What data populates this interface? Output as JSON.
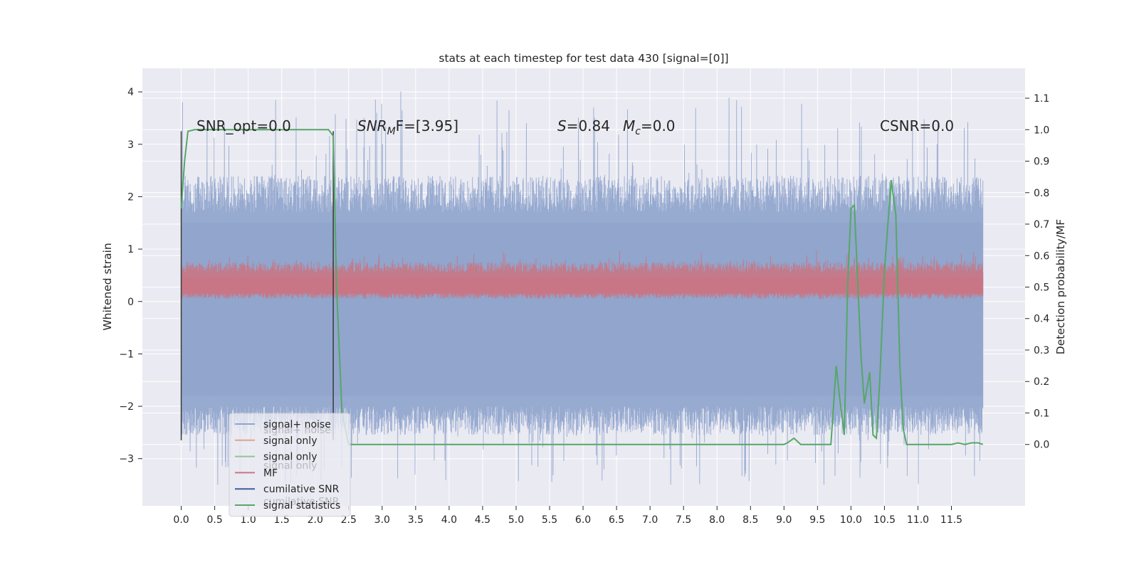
{
  "chart_data": {
    "type": "line",
    "title": "stats at each timestep for test data 430 [signal=[0]]",
    "ylabel_left": "Whitened strain",
    "ylabel_right": "Detection probability/MF",
    "x_ticks": [
      "0.0",
      "0.5",
      "1.0",
      "1.5",
      "2.0",
      "2.5",
      "3.0",
      "3.5",
      "4.0",
      "4.5",
      "5.0",
      "5.5",
      "6.0",
      "6.5",
      "7.0",
      "7.5",
      "8.0",
      "8.5",
      "9.0",
      "9.5",
      "10.0",
      "10.5",
      "11.0",
      "11.5"
    ],
    "y_left_ticks": [
      -3,
      -2,
      -1,
      0,
      1,
      2,
      3,
      4
    ],
    "y_left_tick_labels": [
      "−3",
      "−2",
      "−1",
      "0",
      "1",
      "2",
      "3",
      "4"
    ],
    "y_right_ticks": [
      "0.0",
      "0.1",
      "0.2",
      "0.3",
      "0.4",
      "0.5",
      "0.6",
      "0.7",
      "0.8",
      "0.9",
      "1.0",
      "1.1"
    ],
    "xlim": [
      -0.58,
      12.6
    ],
    "ylim_left": [
      -3.9,
      4.45
    ],
    "ylim_right": [
      -0.195,
      1.195
    ],
    "grid": true,
    "legend_position": "lower-left",
    "annotations": {
      "snr_opt": "SNR_opt=0.0",
      "snr_mf_main": "SNR",
      "snr_mf_sub": "M",
      "snr_mf_rest": "F=[3.95]",
      "s_label": "S",
      "s_value": "=0.84",
      "mc_label": "M",
      "mc_sub": "c",
      "mc_value": "=0.0",
      "csnr": "CSNR=0.0"
    },
    "legend": [
      {
        "label": "signal+ noise",
        "color": "#8fa4cd"
      },
      {
        "label": "signal only",
        "color": "#e0a48a"
      },
      {
        "label": "signal only",
        "color": "#8fc49a"
      },
      {
        "label": "MF",
        "color": "#c97683"
      },
      {
        "label": "cumilative SNR",
        "color": "#3c5da3"
      },
      {
        "label": "signal statistics",
        "color": "#55a868"
      }
    ],
    "legend_ghost_text": [
      "signal+ noise",
      "signal only",
      "cumilative SNR"
    ],
    "colors": {
      "background": "#eaeaf2",
      "grid": "#ffffff",
      "noise": "#8fa4cd",
      "mf": "#c97683",
      "signal_statistics": "#55a868",
      "vlines": "#3a3a3a"
    },
    "noise_band": {
      "x_start": 0.0,
      "x_end": 11.97,
      "typical_upper": 1.5,
      "typical_lower": -1.8,
      "peak_max": 4.1,
      "trough_min": -3.5
    },
    "mf_band": {
      "x_start": 0.0,
      "x_end": 11.97,
      "lower": 0.05,
      "typical_upper": 0.55,
      "peak_max": 0.98
    },
    "vertical_lines": [
      {
        "x": 0.0,
        "y_top": 3.25,
        "y_bottom": -2.65
      },
      {
        "x": 2.27,
        "y_top": 3.25,
        "y_bottom": -2.65
      }
    ],
    "series": [
      {
        "name": "signal statistics",
        "axis": "right",
        "x": [
          0.0,
          0.05,
          0.1,
          0.2,
          2.2,
          2.27,
          2.32,
          2.4,
          2.5,
          3.0,
          4.0,
          5.0,
          6.0,
          7.0,
          8.0,
          8.5,
          9.0,
          9.05,
          9.15,
          9.25,
          9.35,
          9.5,
          9.7,
          9.78,
          9.83,
          9.9,
          9.95,
          10.0,
          10.05,
          10.15,
          10.2,
          10.28,
          10.33,
          10.38,
          10.43,
          10.5,
          10.6,
          10.67,
          10.73,
          10.78,
          10.83,
          10.9,
          11.0,
          11.5,
          11.6,
          11.7,
          11.8,
          11.9,
          11.97
        ],
        "y": [
          0.75,
          0.9,
          0.995,
          1.0,
          1.0,
          0.98,
          0.5,
          0.1,
          0.0,
          0.0,
          0.0,
          0.0,
          0.0,
          0.0,
          0.0,
          0.0,
          0.0,
          0.005,
          0.02,
          0.0,
          0.0,
          0.0,
          0.0,
          0.25,
          0.15,
          0.03,
          0.5,
          0.75,
          0.76,
          0.28,
          0.13,
          0.23,
          0.03,
          0.02,
          0.2,
          0.55,
          0.84,
          0.73,
          0.25,
          0.05,
          0.0,
          0.0,
          0.0,
          0.0,
          0.005,
          0.0,
          0.005,
          0.005,
          0.0
        ]
      }
    ]
  }
}
